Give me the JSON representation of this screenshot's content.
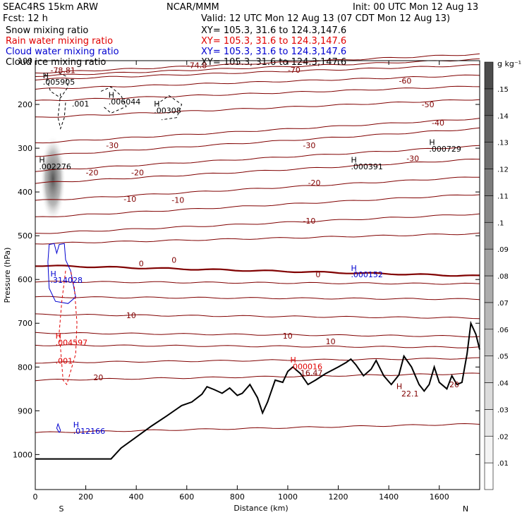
{
  "header": {
    "left_line1": "SEAC4RS 15km ARW",
    "center_line1": "NCAR/MMM",
    "right_line1": "Init: 00 UTC Mon 12 Aug 13",
    "left_line2": "Fcst:    12 h",
    "right_line2": "Valid: 12 UTC Mon 12 Aug 13 (07 CDT Mon 12 Aug 13)",
    "fields": [
      {
        "name": "Snow mixing ratio",
        "xy": "XY= 105.3, 31.6 to 124.3,147.6",
        "color": "#000000"
      },
      {
        "name": "Rain water mixing ratio",
        "xy": "XY= 105.3, 31.6 to 124.3,147.6",
        "color": "#e00000"
      },
      {
        "name": "Cloud water mixing ratio",
        "xy": "XY= 105.3, 31.6 to 124.3,147.6",
        "color": "#0000d0"
      },
      {
        "name": "Cloud ice mixing ratio",
        "xy": "XY= 105.3, 31.6 to 124.3,147.6",
        "color": "#000000"
      }
    ]
  },
  "chart_data": {
    "type": "cross-section",
    "xlabel": "Distance (km)",
    "ylabel": "Pressure (hPa)",
    "xlim": [
      0,
      1760
    ],
    "ylim": [
      100,
      1080
    ],
    "xticks": [
      0,
      200,
      400,
      600,
      800,
      1000,
      1200,
      1400,
      1600
    ],
    "yticks": [
      100,
      200,
      300,
      400,
      500,
      600,
      700,
      800,
      900,
      1000
    ],
    "x_endpoint_labels": {
      "left": "S",
      "right": "N"
    },
    "colorbar": {
      "unit": "g kg⁻¹",
      "levels": [
        ".01",
        ".02",
        ".03",
        ".04",
        ".05",
        ".06",
        ".07",
        ".08",
        ".09",
        ".1",
        ".11",
        ".12",
        ".13",
        ".14",
        ".15"
      ],
      "colors": [
        "#ffffff",
        "#f4f4f4",
        "#e8e8e8",
        "#dcdcdc",
        "#d0d0d0",
        "#c4c4c4",
        "#b8b8b8",
        "#acacac",
        "#a0a0a0",
        "#949494",
        "#888888",
        "#7c7c7c",
        "#707070",
        "#646464",
        "#585858",
        "#4c4c4c"
      ]
    },
    "terrain_profile": [
      [
        0,
        1010
      ],
      [
        300,
        1010
      ],
      [
        340,
        985
      ],
      [
        400,
        960
      ],
      [
        460,
        935
      ],
      [
        520,
        912
      ],
      [
        580,
        888
      ],
      [
        620,
        880
      ],
      [
        660,
        862
      ],
      [
        680,
        845
      ],
      [
        710,
        852
      ],
      [
        740,
        860
      ],
      [
        770,
        848
      ],
      [
        800,
        865
      ],
      [
        820,
        860
      ],
      [
        850,
        840
      ],
      [
        880,
        870
      ],
      [
        900,
        905
      ],
      [
        920,
        880
      ],
      [
        950,
        830
      ],
      [
        980,
        835
      ],
      [
        1000,
        810
      ],
      [
        1020,
        800
      ],
      [
        1050,
        815
      ],
      [
        1080,
        840
      ],
      [
        1110,
        830
      ],
      [
        1150,
        815
      ],
      [
        1200,
        800
      ],
      [
        1230,
        790
      ],
      [
        1250,
        782
      ],
      [
        1270,
        795
      ],
      [
        1300,
        820
      ],
      [
        1330,
        805
      ],
      [
        1350,
        785
      ],
      [
        1380,
        820
      ],
      [
        1410,
        840
      ],
      [
        1440,
        818
      ],
      [
        1460,
        775
      ],
      [
        1490,
        800
      ],
      [
        1520,
        840
      ],
      [
        1540,
        855
      ],
      [
        1560,
        840
      ],
      [
        1580,
        800
      ],
      [
        1600,
        835
      ],
      [
        1630,
        850
      ],
      [
        1650,
        820
      ],
      [
        1670,
        840
      ],
      [
        1690,
        835
      ],
      [
        1710,
        770
      ],
      [
        1725,
        700
      ],
      [
        1745,
        725
      ],
      [
        1760,
        760
      ]
    ],
    "isotherms": [
      {
        "label": "-78.81",
        "p0": 128,
        "p1": 85,
        "emph": false
      },
      {
        "label": "-74.8",
        "p0": 135,
        "p1": 97,
        "emph": false
      },
      {
        "label": "-70",
        "p0": 143,
        "p1": 110,
        "emph": false
      },
      {
        "label": "-60",
        "p0": 165,
        "p1": 133,
        "emph": false
      },
      {
        "label": "-50",
        "p0": 192,
        "p1": 158,
        "emph": false
      },
      {
        "label": "-40",
        "p0": 230,
        "p1": 188,
        "emph": false
      },
      {
        "label": "-30",
        "p0": 288,
        "p1": 232,
        "emph": false
      },
      {
        "label": "-30",
        "p0": 318,
        "p1": 255,
        "emph": false
      },
      {
        "label": "-20",
        "p0": 352,
        "p1": 295,
        "emph": false
      },
      {
        "label": "-20",
        "p0": 380,
        "p1": 325,
        "emph": false
      },
      {
        "label": "-10",
        "p0": 420,
        "p1": 365,
        "emph": false
      },
      {
        "label": "-10",
        "p0": 458,
        "p1": 405,
        "emph": false
      },
      {
        "label": "-10",
        "p0": 495,
        "p1": 450,
        "emph": false
      },
      {
        "label": "0",
        "p0": 518,
        "p1": 495,
        "emph": false
      },
      {
        "label": "0",
        "p0": 568,
        "p1": 592,
        "emph": true
      },
      {
        "label": "",
        "p0": 605,
        "p1": 610,
        "emph": false
      },
      {
        "label": "",
        "p0": 640,
        "p1": 645,
        "emph": false
      },
      {
        "label": "10",
        "p0": 680,
        "p1": 688,
        "emph": false
      },
      {
        "label": "10",
        "p0": 722,
        "p1": 730,
        "emph": false
      },
      {
        "label": "10",
        "p0": 750,
        "p1": 755,
        "emph": false
      },
      {
        "label": "",
        "p0": 790,
        "p1": 780,
        "emph": false
      },
      {
        "label": "20",
        "p0": 830,
        "p1": 815,
        "emph": false
      },
      {
        "label": "",
        "p0": 950,
        "p1": 930,
        "emph": false
      }
    ],
    "annotations": [
      {
        "text": "-78.81",
        "x": 60,
        "p": 128,
        "color": "#800000"
      },
      {
        "text": "-74.8",
        "x": 600,
        "p": 117,
        "color": "#800000"
      },
      {
        "text": "-70",
        "x": 1000,
        "p": 127,
        "color": "#800000"
      },
      {
        "text": "-60",
        "x": 1440,
        "p": 152,
        "color": "#800000"
      },
      {
        "text": "-50",
        "x": 1530,
        "p": 206,
        "color": "#800000"
      },
      {
        "text": "-40",
        "x": 1570,
        "p": 248,
        "color": "#800000"
      },
      {
        "text": "-30",
        "x": 280,
        "p": 300,
        "color": "#800000"
      },
      {
        "text": "-30",
        "x": 1060,
        "p": 300,
        "color": "#800000"
      },
      {
        "text": "-30",
        "x": 1470,
        "p": 330,
        "color": "#800000"
      },
      {
        "text": "-20",
        "x": 200,
        "p": 362,
        "color": "#800000"
      },
      {
        "text": "-20",
        "x": 380,
        "p": 362,
        "color": "#800000"
      },
      {
        "text": "-20",
        "x": 1080,
        "p": 385,
        "color": "#800000"
      },
      {
        "text": "-10",
        "x": 350,
        "p": 422,
        "color": "#800000"
      },
      {
        "text": "-10",
        "x": 540,
        "p": 425,
        "color": "#800000"
      },
      {
        "text": "-10",
        "x": 1060,
        "p": 472,
        "color": "#800000"
      },
      {
        "text": "0",
        "x": 410,
        "p": 570,
        "color": "#800000"
      },
      {
        "text": "0",
        "x": 540,
        "p": 562,
        "color": "#800000"
      },
      {
        "text": "0",
        "x": 1110,
        "p": 595,
        "color": "#800000"
      },
      {
        "text": "10",
        "x": 360,
        "p": 688,
        "color": "#800000"
      },
      {
        "text": "10",
        "x": 980,
        "p": 735,
        "color": "#800000"
      },
      {
        "text": "10",
        "x": 1150,
        "p": 748,
        "color": "#800000"
      },
      {
        "text": "20",
        "x": 230,
        "p": 830,
        "color": "#800000"
      },
      {
        "text": "20",
        "x": 1640,
        "p": 846,
        "color": "#800000"
      },
      {
        "text": "16.47",
        "x": 1050,
        "p": 820,
        "color": "#800000"
      },
      {
        "text": "22.1",
        "x": 1450,
        "p": 867,
        "color": "#800000"
      },
      {
        "text": "H",
        "x": 30,
        "p": 140,
        "color": "#000000"
      },
      {
        "text": ".005905",
        "x": 30,
        "p": 155,
        "color": "#000000"
      },
      {
        "text": ".001",
        "x": 145,
        "p": 205,
        "color": "#000000"
      },
      {
        "text": "H",
        "x": 290,
        "p": 185,
        "color": "#000000"
      },
      {
        "text": ".006044",
        "x": 290,
        "p": 200,
        "color": "#000000"
      },
      {
        "text": "H",
        "x": 470,
        "p": 205,
        "color": "#000000"
      },
      {
        "text": ".00308",
        "x": 470,
        "p": 220,
        "color": "#000000"
      },
      {
        "text": "H",
        "x": 15,
        "p": 333,
        "color": "#000000"
      },
      {
        "text": ".002276",
        "x": 15,
        "p": 348,
        "color": "#000000"
      },
      {
        "text": "H",
        "x": 1250,
        "p": 333,
        "color": "#000000"
      },
      {
        "text": ".000391",
        "x": 1250,
        "p": 348,
        "color": "#000000"
      },
      {
        "text": "H",
        "x": 1560,
        "p": 293,
        "color": "#000000"
      },
      {
        "text": ".000729",
        "x": 1560,
        "p": 308,
        "color": "#000000"
      },
      {
        "text": "H",
        "x": 60,
        "p": 593,
        "color": "#0000d0"
      },
      {
        "text": ".314028",
        "x": 60,
        "p": 608,
        "color": "#0000d0"
      },
      {
        "text": "H",
        "x": 1250,
        "p": 580,
        "color": "#0000d0"
      },
      {
        "text": ".000152",
        "x": 1250,
        "p": 595,
        "color": "#0000d0"
      },
      {
        "text": "H",
        "x": 150,
        "p": 938,
        "color": "#0000d0"
      },
      {
        "text": ".012166",
        "x": 150,
        "p": 953,
        "color": "#0000d0"
      },
      {
        "text": "H",
        "x": 80,
        "p": 735,
        "color": "#e00000"
      },
      {
        "text": ".004597",
        "x": 80,
        "p": 750,
        "color": "#e00000"
      },
      {
        "text": ".001",
        "x": 80,
        "p": 792,
        "color": "#e00000"
      },
      {
        "text": "H",
        "x": 1010,
        "p": 790,
        "color": "#e00000"
      },
      {
        "text": ".000016",
        "x": 1010,
        "p": 805,
        "color": "#e00000"
      },
      {
        "text": "H",
        "x": 1430,
        "p": 850,
        "color": "#800000"
      }
    ],
    "snow_shading": {
      "x": 70,
      "p_top": 270,
      "p_bot": 470,
      "peak": ".15"
    },
    "cloud_water_contours": [
      [
        [
          50,
          560
        ],
        [
          55,
          520
        ],
        [
          75,
          518
        ],
        [
          85,
          540
        ],
        [
          95,
          520
        ],
        [
          115,
          518
        ],
        [
          120,
          555
        ],
        [
          140,
          580
        ],
        [
          160,
          640
        ],
        [
          130,
          655
        ],
        [
          80,
          650
        ],
        [
          55,
          620
        ],
        [
          50,
          560
        ]
      ],
      [
        [
          95,
          950
        ],
        [
          85,
          940
        ],
        [
          90,
          930
        ],
        [
          100,
          945
        ],
        [
          95,
          950
        ]
      ]
    ],
    "rain_water_contours": [
      [
        [
          120,
          580
        ],
        [
          105,
          650
        ],
        [
          95,
          720
        ],
        [
          110,
          830
        ],
        [
          125,
          840
        ],
        [
          160,
          770
        ],
        [
          165,
          700
        ],
        [
          155,
          620
        ],
        [
          140,
          580
        ]
      ]
    ],
    "cloud_ice_contours": [
      [
        [
          40,
          130
        ],
        [
          60,
          170
        ],
        [
          100,
          185
        ],
        [
          130,
          160
        ],
        [
          120,
          135
        ],
        [
          80,
          125
        ]
      ],
      [
        [
          100,
          175
        ],
        [
          90,
          230
        ],
        [
          100,
          255
        ],
        [
          115,
          230
        ],
        [
          120,
          195
        ]
      ],
      [
        [
          260,
          170
        ],
        [
          300,
          160
        ],
        [
          340,
          180
        ],
        [
          360,
          205
        ],
        [
          300,
          220
        ],
        [
          270,
          205
        ]
      ],
      [
        [
          480,
          200
        ],
        [
          530,
          180
        ],
        [
          580,
          200
        ],
        [
          560,
          230
        ],
        [
          500,
          235
        ]
      ]
    ]
  }
}
